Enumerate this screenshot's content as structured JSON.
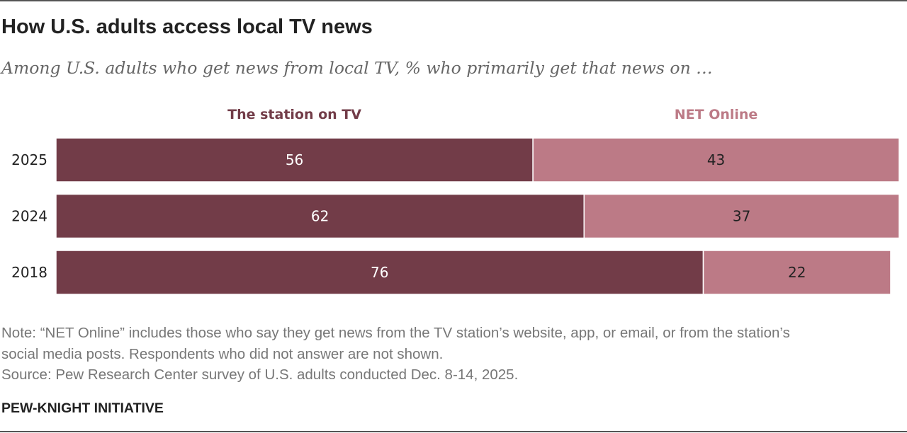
{
  "title": "How U.S. adults access local TV news",
  "subtitle": "Among U.S. adults who get news from local TV, % who primarily get that news on …",
  "chart_data": {
    "type": "bar",
    "orientation": "horizontal",
    "stacked": true,
    "categories": [
      "2025",
      "2024",
      "2018"
    ],
    "series": [
      {
        "name": "The station on TV",
        "values": [
          56,
          62,
          76
        ],
        "color": "#723c48",
        "label_color": "#ffffff"
      },
      {
        "name": "NET Online",
        "values": [
          43,
          37,
          22
        ],
        "color": "#bc7a86",
        "label_color": "#222222"
      }
    ],
    "xlim": [
      0,
      100
    ],
    "grid": false,
    "legend": "top"
  },
  "notes": {
    "line1": "Note: “NET Online” includes those who say they get news from the TV station’s website, app, or email, or from the station’s",
    "line2": "social media posts. Respondents who did not answer are not shown.",
    "source": "Source: Pew Research Center survey of U.S. adults conducted Dec. 8-14, 2025."
  },
  "footer": "PEW-KNIGHT INITIATIVE"
}
